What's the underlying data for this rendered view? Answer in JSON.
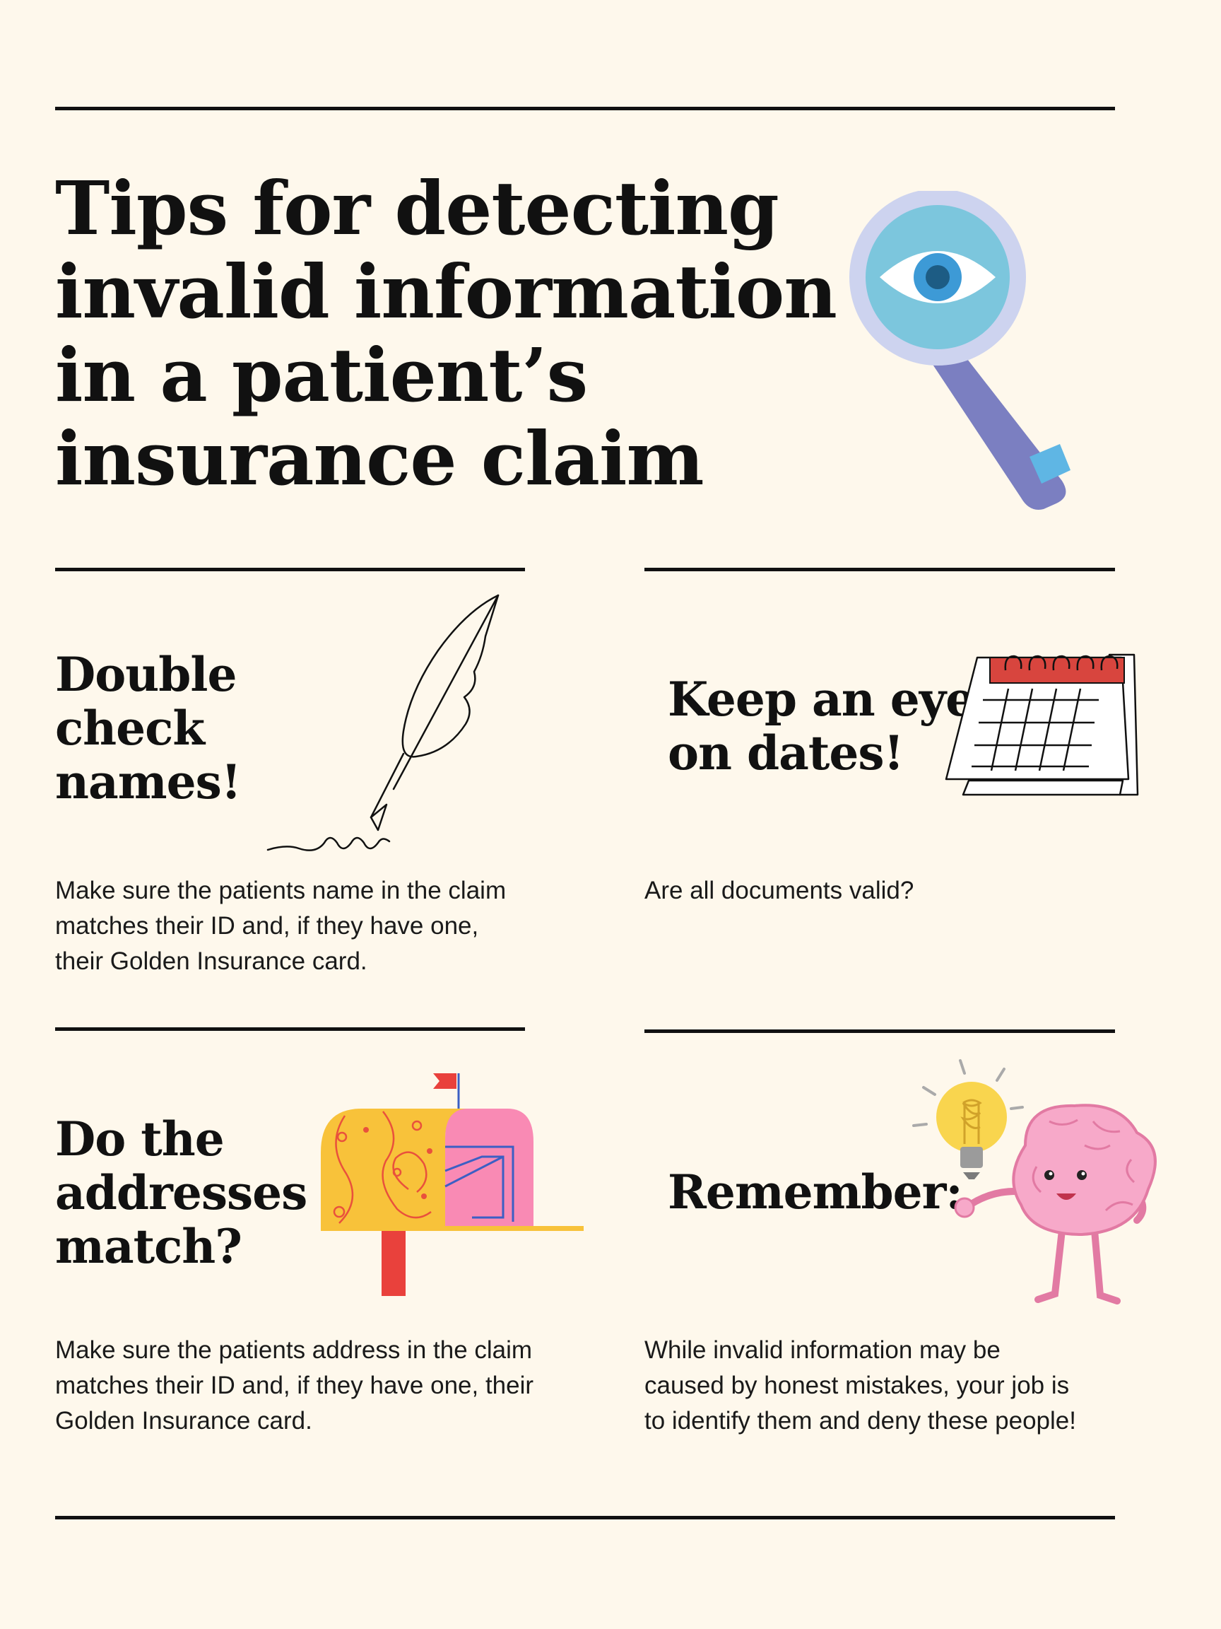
{
  "title": "Tips for detecting invalid information in a patient’s insurance claim",
  "tips": [
    {
      "heading": "Double check names!",
      "body": "Make sure the patients name in the claim matches their ID and, if they have one, their Golden Insurance card.",
      "icon": "feather-quill-icon"
    },
    {
      "heading": "Keep an eye on dates!",
      "body": "Are all documents valid?",
      "icon": "calendar-icon"
    },
    {
      "heading": "Do the addresses match?",
      "body": "Make sure the patients address in the claim matches their ID and, if they have one, their Golden Insurance card.",
      "icon": "mailbox-icon"
    },
    {
      "heading": "Remember:",
      "body": "While invalid information may be caused by honest mistakes, your job is to identify them and deny these people!",
      "icon": "brain-lightbulb-icon"
    }
  ],
  "colors": {
    "background": "#fef8ec",
    "text": "#111111",
    "lens_ring": "#cdd3ef",
    "lens": "#7cc6dd",
    "handle": "#7b7fc1",
    "mailbox_yellow": "#f8c23a",
    "mailbox_pink": "#f98ab4",
    "calendar_red": "#d8453e",
    "brain_pink": "#f7a9c9",
    "bulb_yellow": "#f9d54e"
  }
}
